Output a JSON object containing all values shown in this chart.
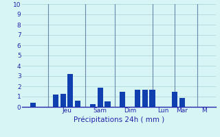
{
  "bars": [
    {
      "x": 2,
      "height": 0.4
    },
    {
      "x": 5,
      "height": 1.2
    },
    {
      "x": 6,
      "height": 1.3
    },
    {
      "x": 7,
      "height": 3.2
    },
    {
      "x": 8,
      "height": 0.6
    },
    {
      "x": 10,
      "height": 0.3
    },
    {
      "x": 11,
      "height": 1.85
    },
    {
      "x": 12,
      "height": 0.55
    },
    {
      "x": 14,
      "height": 1.5
    },
    {
      "x": 16,
      "height": 1.65
    },
    {
      "x": 17,
      "height": 1.65
    },
    {
      "x": 18,
      "height": 1.7
    },
    {
      "x": 21,
      "height": 1.5
    },
    {
      "x": 22,
      "height": 0.9
    }
  ],
  "day_labels": [
    {
      "label": "Jeu",
      "x": 6.5
    },
    {
      "label": "Sam",
      "x": 11
    },
    {
      "label": "Dim",
      "x": 15
    },
    {
      "label": "Lun",
      "x": 19.5
    },
    {
      "label": "Mar",
      "x": 22
    },
    {
      "label": "M",
      "x": 25
    }
  ],
  "day_lines_x": [
    4,
    9,
    13,
    18,
    21,
    24
  ],
  "xlim": [
    0.5,
    26.5
  ],
  "ylim": [
    0,
    10
  ],
  "yticks": [
    0,
    1,
    2,
    3,
    4,
    5,
    6,
    7,
    8,
    9,
    10
  ],
  "xlabel": "Précipitations 24h ( mm )",
  "bar_color": "#1040b0",
  "background_color": "#d8f5f5",
  "grid_color": "#b0d8d8",
  "day_line_color": "#6688aa",
  "axis_color": "#2222aa",
  "text_color": "#2222aa",
  "bar_width": 0.75,
  "xlabel_fontsize": 7.5,
  "tick_fontsize": 6.5
}
